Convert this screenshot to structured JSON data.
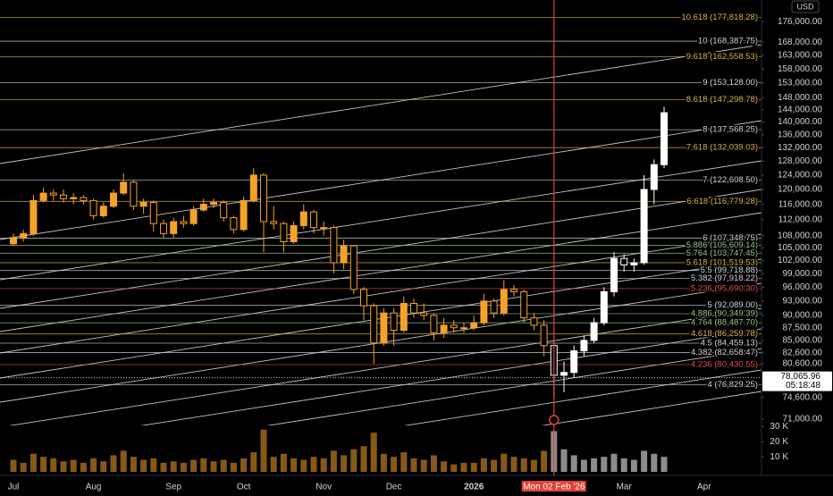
{
  "chart_data": {
    "type": "candlestick",
    "currency": "USD",
    "scale": "log",
    "ylim": [
      70000,
      185000
    ],
    "yticks": [
      {
        "value": 176000,
        "label": "176,000.00"
      },
      {
        "value": 168000,
        "label": "168,000.00"
      },
      {
        "value": 163000,
        "label": "163,000.00"
      },
      {
        "value": 158000,
        "label": "158,000.00"
      },
      {
        "value": 153000,
        "label": "153,000.00"
      },
      {
        "value": 148000,
        "label": "148,000.00"
      },
      {
        "value": 144000,
        "label": "144,000.00"
      },
      {
        "value": 140000,
        "label": "140,000.00"
      },
      {
        "value": 136000,
        "label": "136,000.00"
      },
      {
        "value": 132000,
        "label": "132,000.00"
      },
      {
        "value": 128000,
        "label": "128,000.00"
      },
      {
        "value": 124000,
        "label": "124,000.00"
      },
      {
        "value": 120000,
        "label": "120,000.00"
      },
      {
        "value": 116000,
        "label": "116,000.00"
      },
      {
        "value": 112000,
        "label": "112,000.00"
      },
      {
        "value": 108000,
        "label": "108,000.00"
      },
      {
        "value": 105000,
        "label": "105,000.00"
      },
      {
        "value": 102000,
        "label": "102,000.00"
      },
      {
        "value": 99000,
        "label": "99,000.00"
      },
      {
        "value": 96000,
        "label": "96,000.00"
      },
      {
        "value": 93000,
        "label": "93,000.00"
      },
      {
        "value": 90000,
        "label": "90,000.00"
      },
      {
        "value": 87500,
        "label": "87,500.00"
      },
      {
        "value": 85000,
        "label": "85,000.00"
      },
      {
        "value": 82600,
        "label": "82,600.00"
      },
      {
        "value": 80600,
        "label": "80,600.00"
      },
      {
        "value": 74600,
        "label": "74,600.00"
      },
      {
        "value": 71000,
        "label": "71,000.00"
      }
    ],
    "levels": [
      {
        "value": 177818.28,
        "label": "10.618 (177,818.28)",
        "color": "#d9b44a"
      },
      {
        "value": 168387.75,
        "label": "10 (168,387.75)",
        "color": "#d1d4dc"
      },
      {
        "value": 162558.53,
        "label": "9.618 (162,558.53)",
        "color": "#d9b44a"
      },
      {
        "value": 153128.0,
        "label": "9 (153,128.00)",
        "color": "#d1d4dc"
      },
      {
        "value": 147298.78,
        "label": "8.618 (147,298.78)",
        "color": "#d9b44a"
      },
      {
        "value": 137568.25,
        "label": "8 (137,568.25)",
        "color": "#d1d4dc"
      },
      {
        "value": 132039.03,
        "label": "7.618 (132,039.03)",
        "color": "#d9b44a"
      },
      {
        "value": 122608.5,
        "label": "7 (122,608.50)",
        "color": "#d1d4dc"
      },
      {
        "value": 116779.28,
        "label": "6.618 (116,779.28)",
        "color": "#d9b44a"
      },
      {
        "value": 107348.75,
        "label": "6 (107,348.75)",
        "color": "#d1d4dc"
      },
      {
        "value": 105609.14,
        "label": "5.886 (105,609.14)",
        "color": "#9cc48a"
      },
      {
        "value": 103747.45,
        "label": "5.764 (103,747.45)",
        "color": "#9cc48a"
      },
      {
        "value": 101519.53,
        "label": "5.618 (101,519.53)",
        "color": "#d9b44a"
      },
      {
        "value": 99718.88,
        "label": "5.5 (99,718.88)",
        "color": "#d1d4dc"
      },
      {
        "value": 97918.22,
        "label": "5.382 (97,918.22)",
        "color": "#d1d4dc"
      },
      {
        "value": 95690.3,
        "label": "5.236 (95,690.30)",
        "color": "#e0504a"
      },
      {
        "value": 92089.0,
        "label": "5 (92,089.00)",
        "color": "#d1d4dc"
      },
      {
        "value": 90349.39,
        "label": "4.886 (90,349.39)",
        "color": "#9cc48a"
      },
      {
        "value": 88487.7,
        "label": "4.764 (88,487.70)",
        "color": "#9cc48a"
      },
      {
        "value": 86259.78,
        "label": "4.618 (86,259.78)",
        "color": "#d9b44a"
      },
      {
        "value": 84459.13,
        "label": "4.5 (84,459.13)",
        "color": "#d1d4dc"
      },
      {
        "value": 82658.47,
        "label": "4.382 (82,658.47)",
        "color": "#d1d4dc"
      },
      {
        "value": 80430.55,
        "label": "4.236 (80,430.55)",
        "color": "#e0504a"
      },
      {
        "value": 76829.25,
        "label": "4 (76,829.25)",
        "color": "#d1d4dc"
      }
    ],
    "last_price": {
      "value": 78065.96,
      "label": "78,065.96",
      "countdown": "05:18:48"
    },
    "categories": [
      "Jul",
      null,
      null,
      null,
      null,
      null,
      null,
      null,
      "Aug",
      null,
      null,
      null,
      null,
      null,
      null,
      null,
      "Sep",
      null,
      null,
      null,
      null,
      null,
      null,
      "Oct",
      null,
      null,
      null,
      null,
      null,
      null,
      null,
      "Nov",
      null,
      null,
      null,
      null,
      null,
      null,
      "Dec",
      null,
      null,
      null,
      null,
      null,
      null,
      null,
      "2026",
      null,
      null,
      null,
      null,
      null,
      null,
      null,
      "Mon 02 Feb '26",
      null,
      null,
      null,
      null,
      null,
      null,
      "Mar",
      null,
      null,
      null,
      null,
      null,
      null,
      null,
      "Apr"
    ],
    "highlight_category": "Mon 02 Feb '26",
    "colors": {
      "before": "#f5a22a",
      "after": "#ffffff",
      "crosshair": "#e0413a"
    },
    "open": [
      106000,
      107500,
      108500,
      117000,
      119000,
      118500,
      117500,
      117800,
      117000,
      113000,
      115500,
      119000,
      122000,
      115500,
      116500,
      111000,
      108500,
      111500,
      111000,
      114500,
      116000,
      116500,
      112500,
      109500,
      117000,
      124000,
      111500,
      111000,
      106500,
      110500,
      114000,
      110000,
      110000,
      101500,
      105500,
      95500,
      92000,
      84500,
      90500,
      87000,
      92500,
      90500,
      90000,
      86500,
      88000,
      87500,
      87500,
      88500,
      93000,
      90500,
      95500,
      95000,
      89500,
      88000,
      84000,
      78500,
      79000,
      83000,
      85000,
      88500,
      95000,
      102500,
      101000,
      101500,
      120000,
      127000,
      null,
      null,
      null,
      null
    ],
    "high": [
      108500,
      109500,
      118500,
      120500,
      120000,
      120000,
      119000,
      118500,
      117500,
      116500,
      120000,
      124500,
      122500,
      117500,
      117000,
      112000,
      112500,
      113000,
      115500,
      117500,
      117500,
      117000,
      113000,
      118000,
      126000,
      124500,
      115500,
      111500,
      111500,
      116000,
      114500,
      111500,
      110500,
      107000,
      105500,
      96000,
      92500,
      91500,
      91500,
      94000,
      93500,
      92500,
      90500,
      89500,
      89000,
      88500,
      90000,
      94500,
      93500,
      97500,
      96500,
      95500,
      90500,
      89000,
      85000,
      81000,
      84000,
      86000,
      89500,
      96000,
      104000,
      103500,
      102500,
      124000,
      128500,
      145000,
      null,
      null,
      null,
      null
    ],
    "low": [
      105500,
      106500,
      108000,
      116500,
      117000,
      116500,
      116000,
      116000,
      112000,
      112500,
      115000,
      118500,
      114500,
      113500,
      109000,
      107500,
      107500,
      110000,
      110500,
      114000,
      115000,
      111500,
      108500,
      109000,
      116500,
      104000,
      109500,
      104000,
      106000,
      109500,
      108500,
      108000,
      99000,
      100000,
      94500,
      89000,
      80600,
      84000,
      84000,
      86500,
      89500,
      89000,
      85000,
      85500,
      86500,
      86500,
      87000,
      88000,
      89500,
      90000,
      94000,
      88500,
      87000,
      82000,
      74600,
      75500,
      78000,
      82000,
      84500,
      88000,
      94000,
      99500,
      99500,
      101000,
      116000,
      126000,
      null,
      null,
      null,
      null
    ],
    "close": [
      107500,
      108500,
      117000,
      119000,
      118500,
      117500,
      117800,
      117000,
      113000,
      115500,
      119000,
      122000,
      115500,
      116500,
      111000,
      108500,
      111500,
      111000,
      114500,
      116000,
      116500,
      112500,
      109500,
      117000,
      124000,
      111500,
      111000,
      106500,
      110500,
      114000,
      110000,
      110000,
      101500,
      105500,
      95500,
      92000,
      84500,
      90500,
      87000,
      92500,
      90500,
      90000,
      86500,
      88000,
      87500,
      87500,
      88500,
      93000,
      90500,
      95500,
      95000,
      89500,
      88000,
      84000,
      78500,
      79000,
      83000,
      85000,
      88500,
      95000,
      102500,
      101000,
      101500,
      120000,
      127000,
      143000,
      null,
      null,
      null,
      null
    ],
    "volume": {
      "ylim": [
        0,
        32
      ],
      "yticks": [
        {
          "value": 30,
          "label": "30 K"
        },
        {
          "value": 20,
          "label": "20 K"
        },
        {
          "value": 10,
          "label": "10 K"
        }
      ],
      "values": [
        8,
        6,
        12,
        10,
        9,
        7,
        8,
        6,
        9,
        7,
        11,
        14,
        10,
        8,
        9,
        6,
        7,
        6,
        8,
        9,
        7,
        8,
        6,
        9,
        13,
        28,
        10,
        12,
        9,
        8,
        10,
        9,
        14,
        11,
        15,
        17,
        26,
        12,
        10,
        13,
        9,
        8,
        11,
        7,
        5,
        6,
        6,
        9,
        8,
        12,
        10,
        9,
        8,
        14,
        27,
        15,
        11,
        8,
        9,
        10,
        12,
        9,
        8,
        14,
        12,
        10,
        null,
        null,
        null,
        null
      ]
    }
  }
}
